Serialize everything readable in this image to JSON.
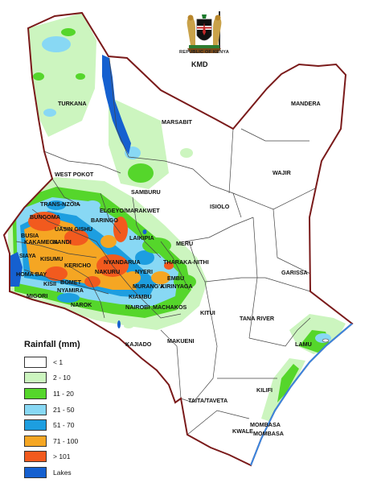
{
  "header": {
    "emblem_caption": "REPUBLIC OF KENYA",
    "agency": "KMD"
  },
  "legend": {
    "title": "Rainfall (mm)",
    "items": [
      {
        "label": "< 1",
        "color": "#ffffff"
      },
      {
        "label": "2 - 10",
        "color": "#ccf5bf"
      },
      {
        "label": "11 - 20",
        "color": "#55d62b"
      },
      {
        "label": "21 - 50",
        "color": "#88d8f4"
      },
      {
        "label": "51 - 70",
        "color": "#1d9ee0"
      },
      {
        "label": "71 - 100",
        "color": "#f5a623"
      },
      {
        "label": "> 101",
        "color": "#f25a1e"
      },
      {
        "label": "Lakes",
        "color": "#1560d0"
      }
    ]
  },
  "counties": [
    "TURKANA",
    "MARSABIT",
    "MANDERA",
    "WAJIR",
    "WEST POKOT",
    "SAMBURU",
    "TRANS-NZOIA",
    "ELGEYO/MARAKWET",
    "BUNGOMA",
    "BARINGO",
    "UASIN GISHU",
    "ISIOLO",
    "BUSIA",
    "KAKAMEGA",
    "NANDI",
    "LAIKIPIA",
    "SIAYA",
    "KISUMU",
    "MERU",
    "KERICHO",
    "NYANDARUA",
    "THARAKA-NITHI",
    "HOMA BAY",
    "NAKURU",
    "NYERI",
    "GARISSA",
    "KISII",
    "BOMET",
    "EMBU",
    "NYAMIRA",
    "MURANG'A",
    "KIRINYAGA",
    "MIGORI",
    "NAROK",
    "KIAMBU",
    "NAIROBI",
    "MACHAKOS",
    "KITUI",
    "TANA RIVER",
    "LAMU",
    "KAJIADO",
    "MAKUENI",
    "TAITA/TAVETA",
    "KILIFI",
    "MOMBASA",
    "KWALE",
    "MOMBASA"
  ]
}
